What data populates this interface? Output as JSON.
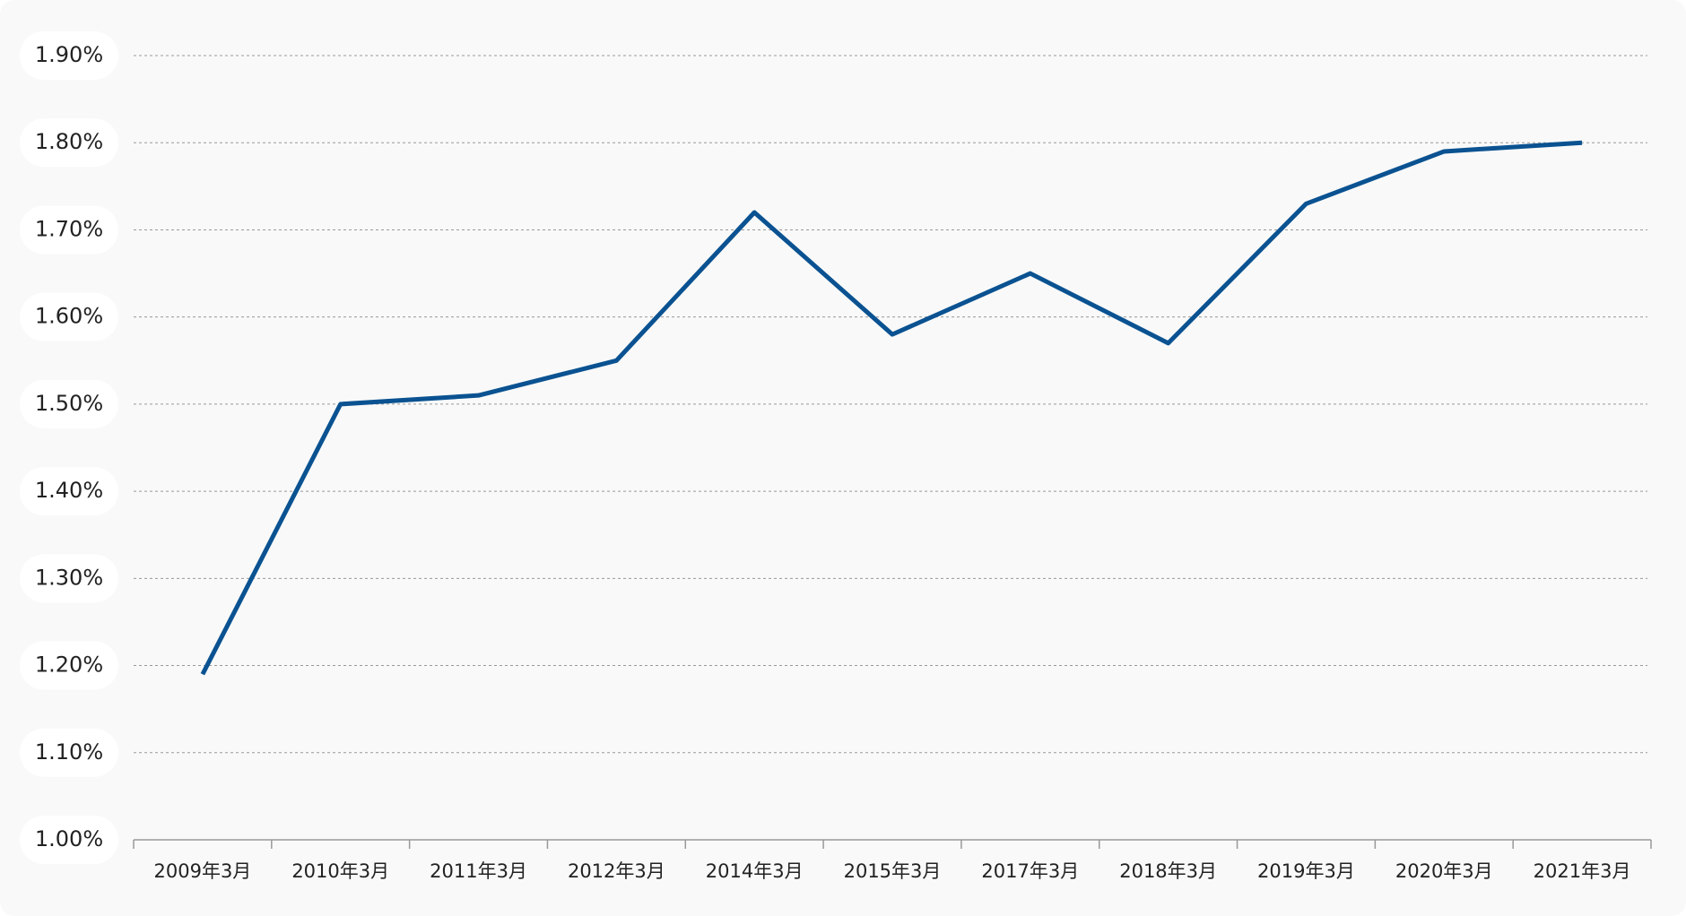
{
  "chart_data": {
    "type": "line",
    "categories": [
      "2009年3月",
      "2010年3月",
      "2011年3月",
      "2012年3月",
      "2014年3月",
      "2015年3月",
      "2017年3月",
      "2018年3月",
      "2019年3月",
      "2020年3月",
      "2021年3月"
    ],
    "values": [
      1.19,
      1.5,
      1.51,
      1.55,
      1.72,
      1.58,
      1.65,
      1.57,
      1.73,
      1.79,
      1.8
    ],
    "color": "#0a5291",
    "ylim": [
      1.0,
      1.9
    ],
    "yticks": [
      {
        "value": 1.0,
        "label": "1.00%"
      },
      {
        "value": 1.1,
        "label": "1.10%"
      },
      {
        "value": 1.2,
        "label": "1.20%"
      },
      {
        "value": 1.3,
        "label": "1.30%"
      },
      {
        "value": 1.4,
        "label": "1.40%"
      },
      {
        "value": 1.5,
        "label": "1.50%"
      },
      {
        "value": 1.6,
        "label": "1.60%"
      },
      {
        "value": 1.7,
        "label": "1.70%"
      },
      {
        "value": 1.8,
        "label": "1.80%"
      },
      {
        "value": 1.9,
        "label": "1.90%"
      }
    ],
    "grid": true
  }
}
